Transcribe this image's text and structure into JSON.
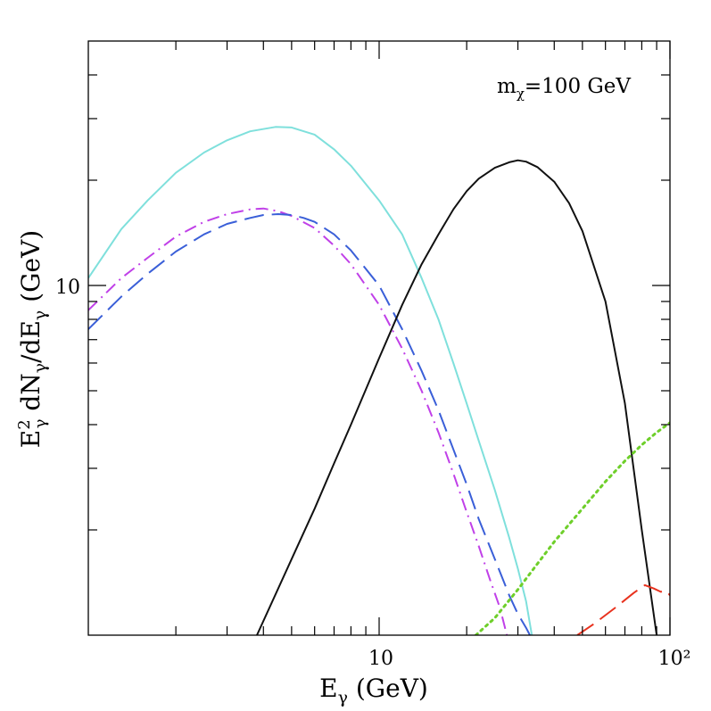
{
  "chart_data": {
    "type": "line",
    "title": "",
    "annotation": {
      "prefix": "m",
      "subscript": "χ",
      "suffix": "=100 GeV"
    },
    "xlabel": {
      "main": "E",
      "sub": "γ",
      "rest": " (GeV)"
    },
    "ylabel": {
      "p1": "E",
      "p1_sup": "2",
      "p1_sub": "γ",
      "p2": " dN",
      "p2_sub": "γ",
      "p3": "/dE",
      "p3_sub": "γ",
      "p4": " (GeV)"
    },
    "xscale": "log",
    "yscale": "log",
    "xlim": [
      1,
      100
    ],
    "ylim": [
      1,
      50
    ],
    "x_tick_labels": {
      "ten": "10",
      "hundred": "10²"
    },
    "y_tick_labels": {
      "ten": "10"
    },
    "x_major_ticks": [
      10,
      100
    ],
    "x_minor_ticks": [
      2,
      3,
      4,
      5,
      6,
      7,
      8,
      9,
      20,
      30,
      40,
      50,
      60,
      70,
      80,
      90
    ],
    "y_major_ticks": [
      10
    ],
    "y_minor_ticks": [
      2,
      3,
      4,
      5,
      6,
      7,
      8,
      9,
      20,
      30,
      40
    ],
    "series": [
      {
        "name": "cyan solid",
        "color": "#7fe0dc",
        "style": "solid",
        "x": [
          1.0,
          1.3,
          1.6,
          2.0,
          2.5,
          3.0,
          3.6,
          4.4,
          5.0,
          6.0,
          7.0,
          8.0,
          10.0,
          12.0,
          14.0,
          16.0,
          18.0,
          20.0,
          22.0,
          25.0,
          28.0,
          30.0,
          32.0,
          33.5
        ],
        "y": [
          10.5,
          14.5,
          17.5,
          21.0,
          24.0,
          26.0,
          27.6,
          28.4,
          28.3,
          27.0,
          24.5,
          22.0,
          17.5,
          14.0,
          10.5,
          8.0,
          6.0,
          4.6,
          3.6,
          2.6,
          1.9,
          1.55,
          1.25,
          1.0
        ]
      },
      {
        "name": "magenta dot-dash",
        "color": "#c040e8",
        "style": "dashdot",
        "x": [
          1.0,
          1.3,
          1.6,
          2.0,
          2.5,
          3.0,
          3.6,
          4.0,
          4.5,
          5.0,
          6.0,
          7.0,
          8.0,
          10.0,
          12.0,
          14.0,
          16.0,
          18.0,
          20.0,
          22.0,
          24.0,
          26.0,
          27.5
        ],
        "y": [
          8.5,
          10.5,
          12.0,
          13.8,
          15.2,
          16.0,
          16.5,
          16.6,
          16.3,
          15.8,
          14.6,
          13.0,
          11.5,
          8.8,
          6.6,
          5.0,
          3.8,
          2.9,
          2.25,
          1.8,
          1.45,
          1.2,
          1.0
        ]
      },
      {
        "name": "blue dashed",
        "color": "#3a5fd8",
        "style": "dashed",
        "x": [
          1.0,
          1.3,
          1.6,
          2.0,
          2.5,
          3.0,
          3.6,
          4.0,
          4.5,
          5.0,
          5.5,
          6.0,
          7.0,
          8.0,
          10.0,
          12.0,
          14.0,
          16.0,
          18.0,
          20.0,
          22.0,
          25.0,
          28.0,
          30.0,
          32.0,
          33.0
        ],
        "y": [
          7.5,
          9.3,
          10.8,
          12.5,
          14.0,
          15.0,
          15.6,
          15.9,
          16.0,
          15.9,
          15.6,
          15.2,
          14.0,
          12.6,
          10.0,
          7.5,
          5.7,
          4.4,
          3.4,
          2.7,
          2.15,
          1.65,
          1.3,
          1.15,
          1.05,
          1.0
        ]
      },
      {
        "name": "black solid",
        "color": "#111111",
        "style": "solid",
        "x": [
          3.8,
          5.0,
          6.0,
          7.0,
          8.0,
          10.0,
          12.0,
          14.0,
          16.0,
          18.0,
          20.0,
          22.0,
          25.0,
          28.0,
          30.0,
          32.0,
          35.0,
          40.0,
          45.0,
          50.0,
          60.0,
          70.0,
          80.0,
          90.0
        ],
        "y": [
          1.0,
          1.65,
          2.3,
          3.1,
          4.0,
          6.2,
          8.8,
          11.5,
          14.0,
          16.5,
          18.6,
          20.2,
          21.7,
          22.5,
          22.8,
          22.6,
          21.8,
          19.8,
          17.2,
          14.3,
          9.0,
          4.6,
          2.0,
          1.0
        ]
      },
      {
        "name": "green dotted",
        "color": "#6ecf2a",
        "style": "dotted",
        "x": [
          21.5,
          25.0,
          30.0,
          35.0,
          40.0,
          50.0,
          60.0,
          70.0,
          80.0,
          90.0,
          100.0
        ],
        "y": [
          1.0,
          1.12,
          1.35,
          1.6,
          1.85,
          2.3,
          2.75,
          3.15,
          3.5,
          3.8,
          4.05
        ]
      },
      {
        "name": "red dashed",
        "color": "#e8321e",
        "style": "dashed",
        "x": [
          48.0,
          55.0,
          65.0,
          75.0,
          82.0,
          88.0,
          93.0,
          97.0,
          100.0
        ],
        "y": [
          1.0,
          1.08,
          1.2,
          1.32,
          1.39,
          1.36,
          1.33,
          1.34,
          1.3
        ]
      }
    ]
  }
}
